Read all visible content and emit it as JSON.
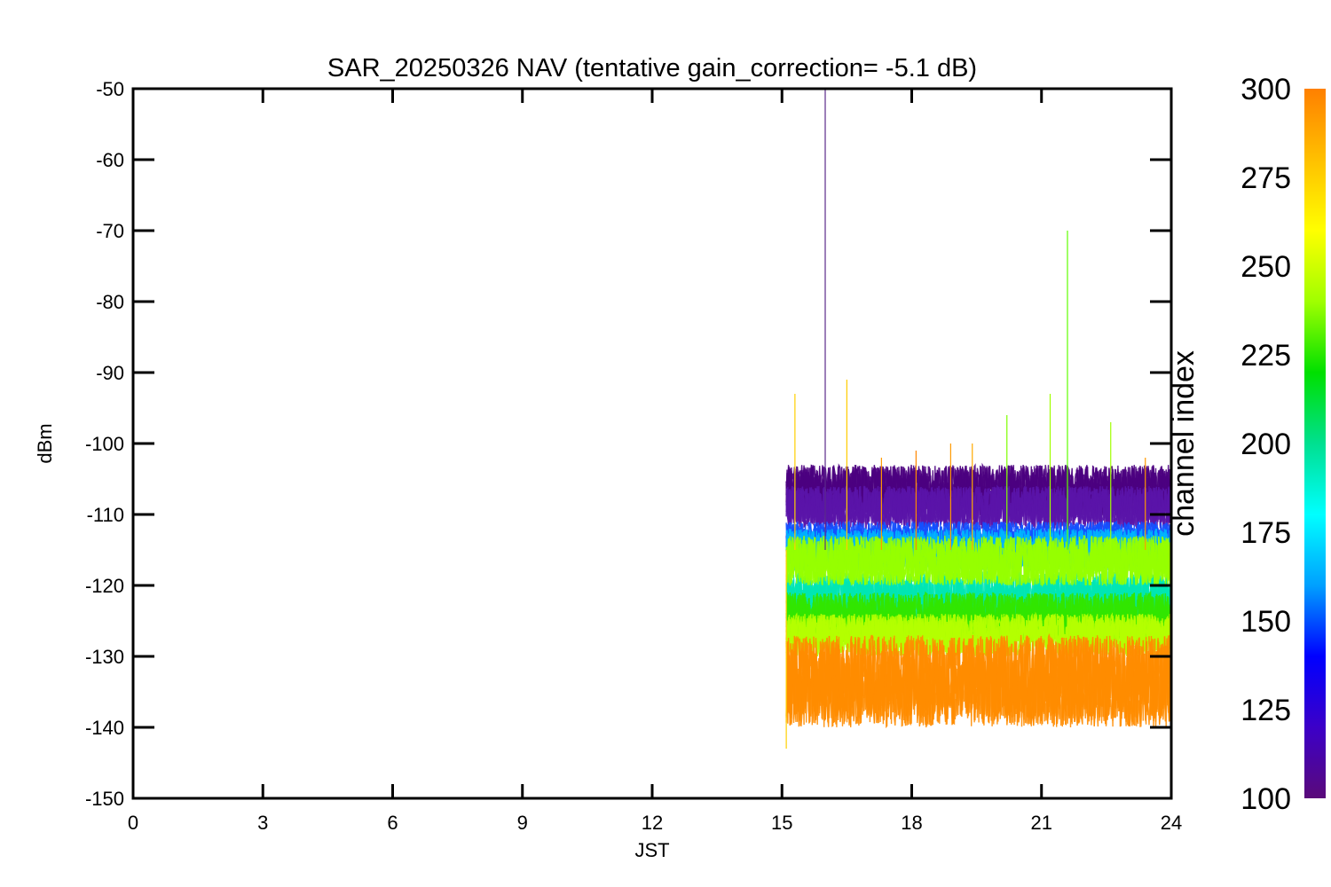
{
  "chart_data": {
    "type": "line",
    "title": "SAR_20250326 NAV (tentative gain_correction= -5.1 dB)",
    "xlabel": "JST",
    "ylabel": "dBm",
    "xlim": [
      0,
      24
    ],
    "ylim": [
      -150,
      -50
    ],
    "x_ticks": [
      "0",
      "3",
      "6",
      "9",
      "12",
      "15",
      "18",
      "21",
      "24"
    ],
    "y_ticks": [
      "-50",
      "-60",
      "-70",
      "-80",
      "-90",
      "-100",
      "-110",
      "-120",
      "-130",
      "-140",
      "-150"
    ],
    "grid": false,
    "data_start_jst": 15.1,
    "data_end_jst": 24,
    "colorbar": {
      "label": "channel index",
      "range": [
        100,
        300
      ],
      "ticks": [
        "300",
        "275",
        "250",
        "225",
        "200",
        "175",
        "150",
        "125",
        "100"
      ],
      "colormap": [
        "#5a0a7a",
        "#3c00c8",
        "#0000ff",
        "#00a0ff",
        "#00ffff",
        "#00e090",
        "#00e000",
        "#a0ff00",
        "#ffff00",
        "#ffc000",
        "#ff8000"
      ]
    },
    "bands": [
      {
        "channel_range": [
          100,
          112
        ],
        "color": "#4b0080",
        "level_dbm_range": [
          -110,
          -103
        ]
      },
      {
        "channel_range": [
          112,
          125
        ],
        "color": "#5a14a8",
        "level_dbm_range": [
          -112,
          -106
        ]
      },
      {
        "channel_range": [
          130,
          150
        ],
        "color": "#1450ff",
        "level_dbm_range": [
          -116,
          -111
        ]
      },
      {
        "channel_range": [
          150,
          175
        ],
        "color": "#00b4ff",
        "level_dbm_range": [
          -118,
          -112
        ]
      },
      {
        "channel_range": [
          175,
          200
        ],
        "color": "#00e6b4",
        "level_dbm_range": [
          -126,
          -118
        ]
      },
      {
        "channel_range": [
          225,
          250
        ],
        "color": "#32e600",
        "level_dbm_range": [
          -128,
          -121
        ]
      },
      {
        "channel_range": [
          250,
          265
        ],
        "color": "#96ff00",
        "level_dbm_range": [
          -120,
          -113
        ]
      },
      {
        "channel_range": [
          260,
          280
        ],
        "color": "#b4ff00",
        "level_dbm_range": [
          -130,
          -124
        ]
      },
      {
        "channel_range": [
          280,
          300
        ],
        "color": "#ff8c00",
        "level_dbm_range": [
          -140,
          -127
        ]
      }
    ],
    "spikes": [
      {
        "x": 15.1,
        "y": -143,
        "color": "#ffd000"
      },
      {
        "x": 15.3,
        "y": -93,
        "color": "#ffd000"
      },
      {
        "x": 16.0,
        "y": -50,
        "color": "#5a2a8a"
      },
      {
        "x": 16.5,
        "y": -91,
        "color": "#ffcc00"
      },
      {
        "x": 17.3,
        "y": -102,
        "color": "#ff9900"
      },
      {
        "x": 18.1,
        "y": -101,
        "color": "#ff8800"
      },
      {
        "x": 18.9,
        "y": -100,
        "color": "#ff9900"
      },
      {
        "x": 19.4,
        "y": -100,
        "color": "#ffaa00"
      },
      {
        "x": 20.2,
        "y": -96,
        "color": "#80ff00"
      },
      {
        "x": 21.2,
        "y": -93,
        "color": "#a0ff00"
      },
      {
        "x": 21.6,
        "y": -70,
        "color": "#60ff00"
      },
      {
        "x": 22.6,
        "y": -97,
        "color": "#a0ff00"
      },
      {
        "x": 23.4,
        "y": -102,
        "color": "#ff9900"
      }
    ]
  }
}
